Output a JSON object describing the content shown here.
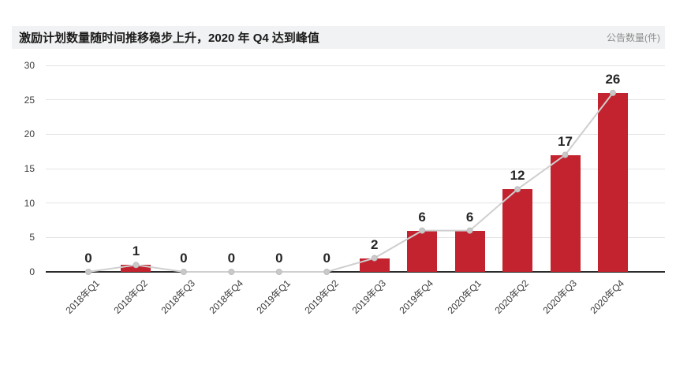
{
  "header": {
    "title": "激励计划数量随时间推移稳步上升，2020 年 Q4 达到峰值",
    "unit_label": "公告数量(件)"
  },
  "chart_data": {
    "type": "bar",
    "overlay": "line-with-markers",
    "title": "激励计划数量随时间推移稳步上升，2020 年 Q4 达到峰值",
    "ylabel": "公告数量(件)",
    "categories": [
      "2018年Q1",
      "2018年Q2",
      "2018年Q3",
      "2018年Q4",
      "2019年Q1",
      "2019年Q2",
      "2019年Q3",
      "2019年Q4",
      "2020年Q1",
      "2020年Q2",
      "2020年Q3",
      "2020年Q4"
    ],
    "values": [
      0,
      1,
      0,
      0,
      0,
      0,
      2,
      6,
      6,
      12,
      17,
      26
    ],
    "data_labels": [
      "0",
      "1",
      "0",
      "0",
      "0",
      "0",
      "2",
      "6",
      "6",
      "12",
      "17",
      "26"
    ],
    "ylim": [
      0,
      30
    ],
    "yticks": [
      0,
      5,
      10,
      15,
      20,
      25,
      30
    ],
    "grid": true,
    "legend": "none",
    "colors": {
      "bar": "#c2232f",
      "line": "#cfcfcf",
      "marker_fill": "#c9c9c9",
      "marker_stroke": "#bdbdbd",
      "grid": "#e3e3e3",
      "axis": "#2b2b2b",
      "value_label": "#262626",
      "tick_label": "#3d3d3d",
      "header_bg": "#f1f2f3",
      "title": "#1a1a1a",
      "unit": "#8c8c8c"
    }
  }
}
